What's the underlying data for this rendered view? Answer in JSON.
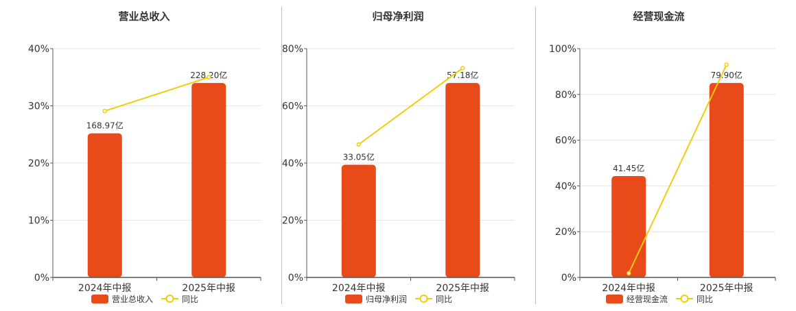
{
  "colors": {
    "bar": "#E84A19",
    "line": "#F2CC0C",
    "grid": "#e6e6e6",
    "axis": "#555555",
    "text": "#333333"
  },
  "chart_data": [
    {
      "type": "bar",
      "title": "营业总收入",
      "categories": [
        "2024年中报",
        "2025年中报"
      ],
      "ylim": [
        0,
        40
      ],
      "yticks": [
        "0%",
        "10%",
        "20%",
        "30%",
        "40%"
      ],
      "bar_values": [
        25.2,
        34.0
      ],
      "bar_labels": [
        "168.97亿",
        "228.20亿"
      ],
      "line_values": [
        29.1,
        35.0
      ],
      "legend": [
        "营业总收入",
        "同比"
      ],
      "legend_position": "bottom"
    },
    {
      "type": "bar",
      "title": "归母净利润",
      "categories": [
        "2024年中报",
        "2025年中报"
      ],
      "ylim": [
        0,
        80
      ],
      "yticks": [
        "0%",
        "20%",
        "40%",
        "60%",
        "80%"
      ],
      "bar_values": [
        39.4,
        68.0
      ],
      "bar_labels": [
        "33.05亿",
        "57.18亿"
      ],
      "line_values": [
        46.5,
        73.2
      ],
      "legend": [
        "归母净利润",
        "同比"
      ],
      "legend_position": "bottom"
    },
    {
      "type": "bar",
      "title": "经营现金流",
      "categories": [
        "2024年中报",
        "2025年中报"
      ],
      "ylim": [
        0,
        100
      ],
      "yticks": [
        "0%",
        "20%",
        "40%",
        "60%",
        "80%",
        "100%"
      ],
      "bar_values": [
        44.3,
        85.0
      ],
      "bar_labels": [
        "41.45亿",
        "79.90亿"
      ],
      "line_values": [
        1.8,
        93.0
      ],
      "legend": [
        "经营现金流",
        "同比"
      ],
      "legend_position": "bottom"
    }
  ]
}
